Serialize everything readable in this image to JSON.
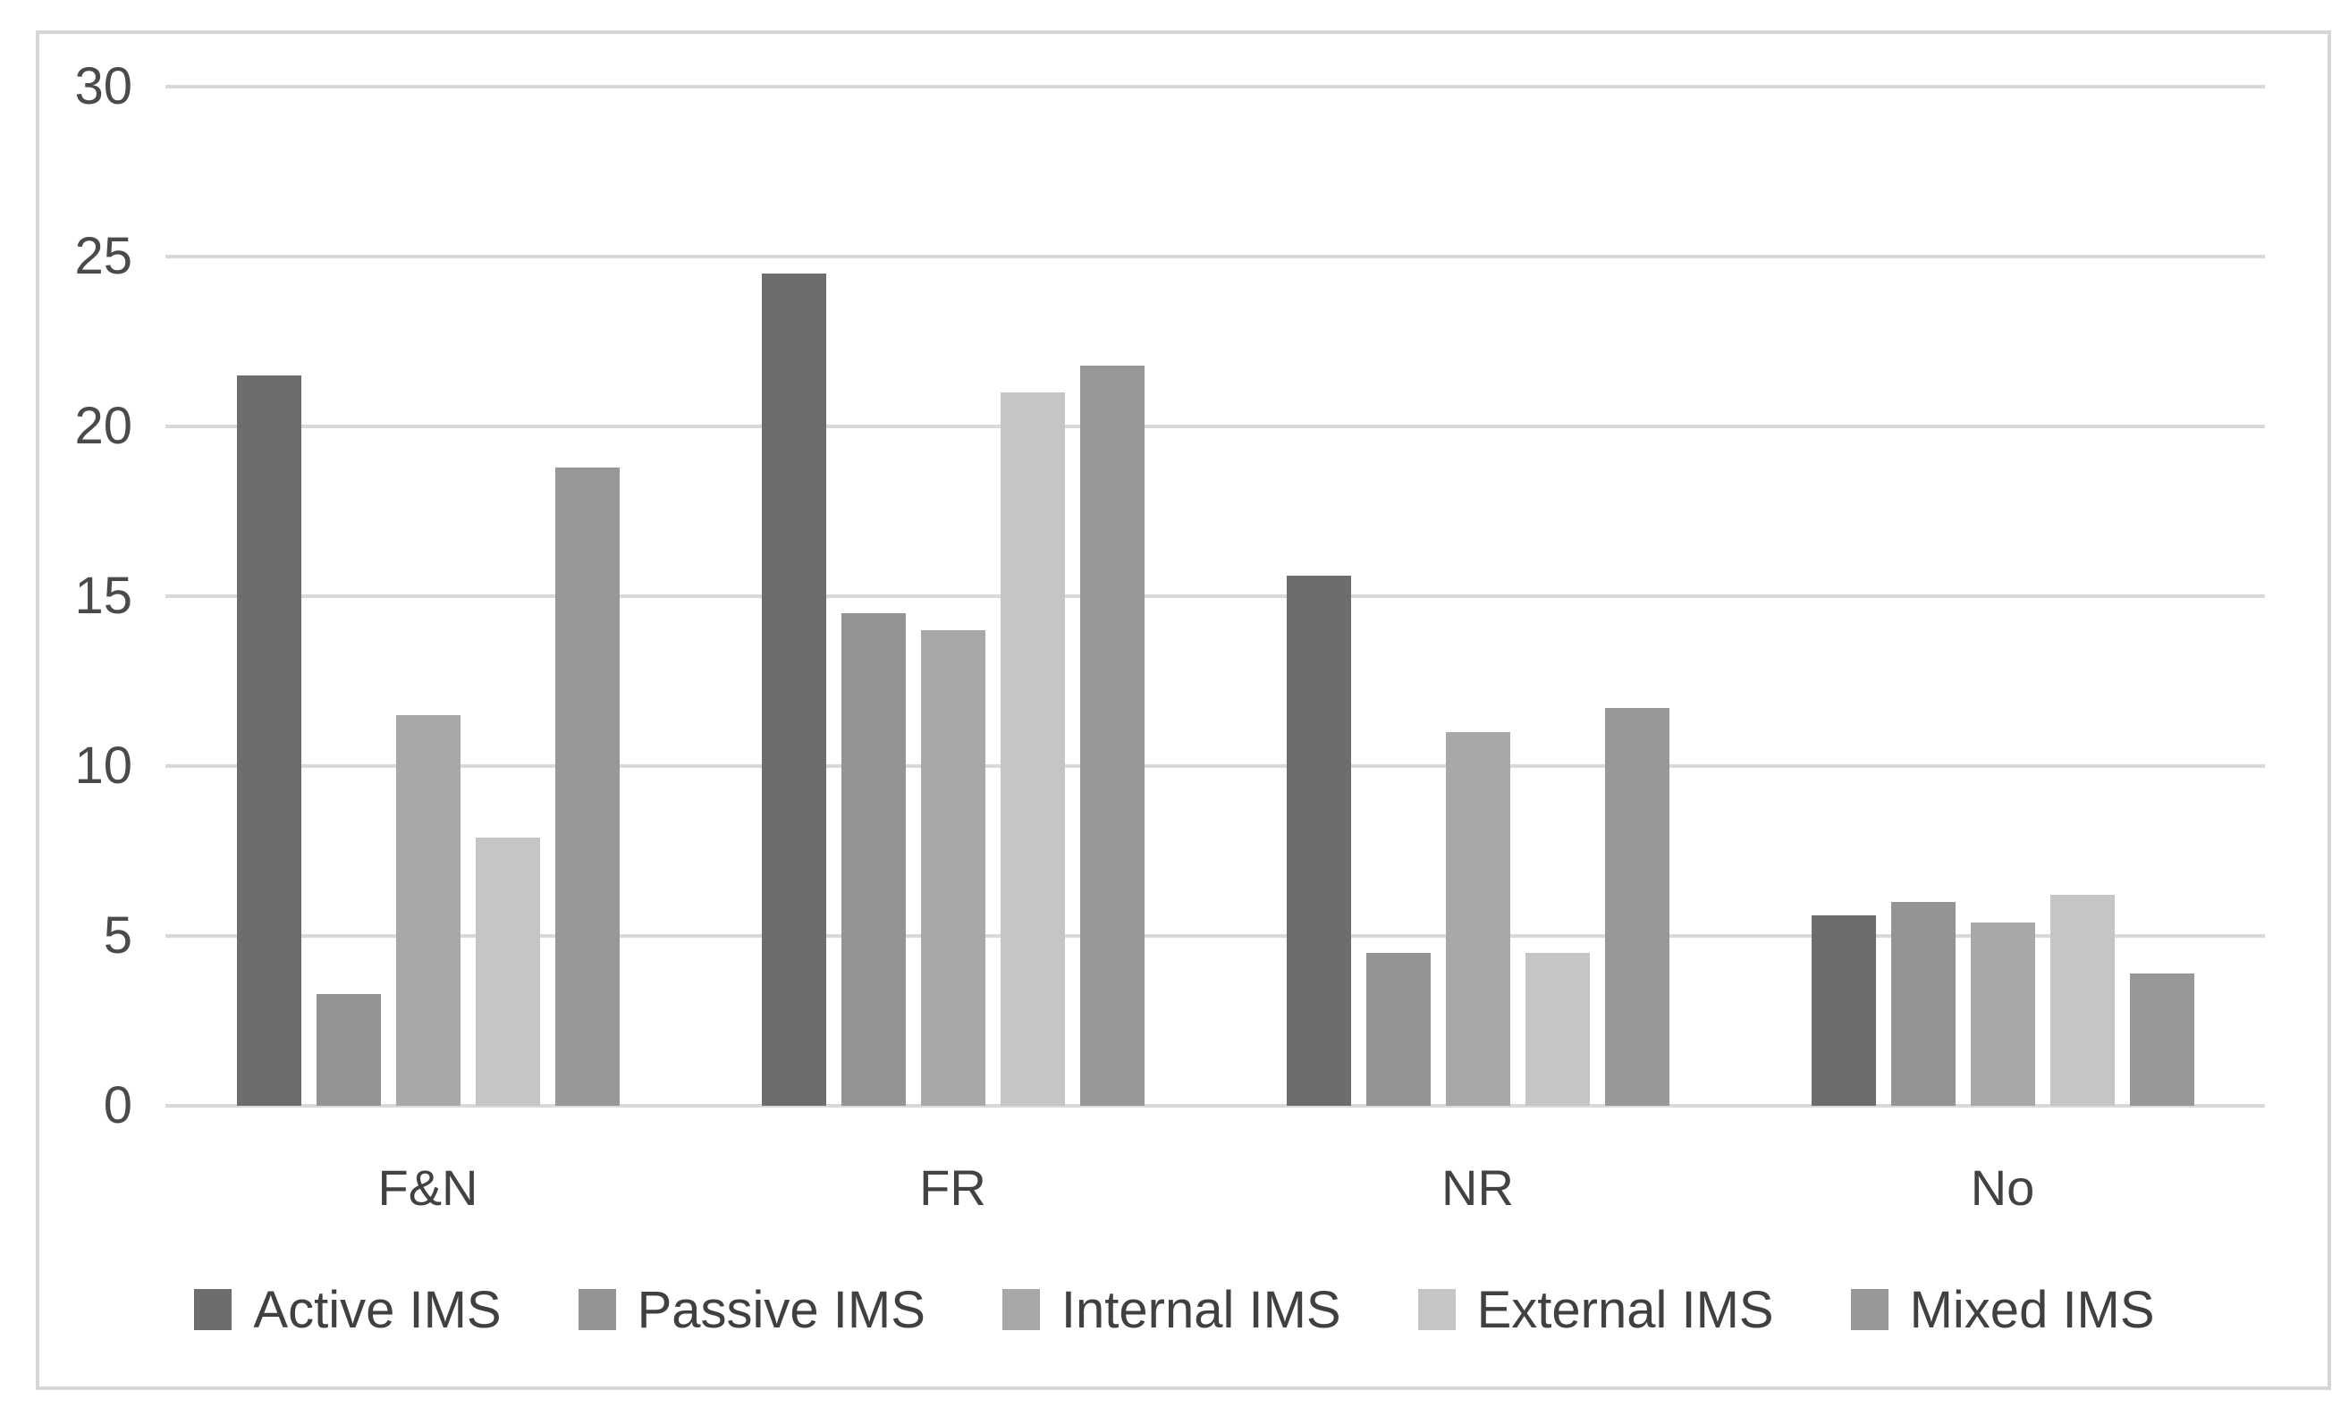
{
  "chart_data": {
    "type": "bar",
    "title": "",
    "xlabel": "",
    "ylabel": "",
    "categories": [
      "F&N",
      "FR",
      "NR",
      "No"
    ],
    "series": [
      {
        "name": "Active IMS",
        "color": "#6d6d6d",
        "values": [
          21.5,
          24.5,
          15.6,
          5.6
        ]
      },
      {
        "name": "Passive IMS",
        "color": "#949494",
        "values": [
          3.3,
          14.5,
          4.5,
          6.0
        ]
      },
      {
        "name": "Internal IMS",
        "color": "#a8a8a8",
        "values": [
          11.5,
          14.0,
          11.0,
          5.4
        ]
      },
      {
        "name": "External IMS",
        "color": "#c5c5c5",
        "values": [
          7.9,
          21.0,
          4.5,
          6.2
        ]
      },
      {
        "name": "Mixed IMS",
        "color": "#989898",
        "values": [
          18.8,
          21.8,
          11.7,
          3.9
        ]
      }
    ],
    "ylim": [
      0,
      30
    ],
    "yticks": [
      0,
      5,
      10,
      15,
      20,
      25,
      30
    ],
    "grid": true,
    "legend_position": "bottom",
    "colors": {
      "gridline": "#d9d9d9",
      "frame_border": "#d6d6d6",
      "axis_text": "#4a4a4a",
      "legend_text": "#404040",
      "background": "#ffffff"
    }
  }
}
